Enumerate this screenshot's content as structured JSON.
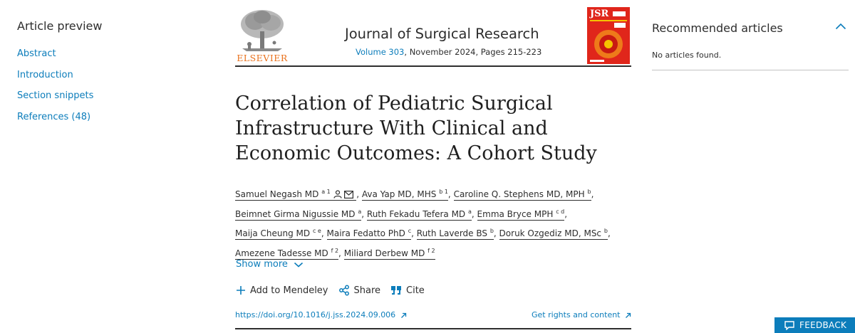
{
  "left_nav": {
    "title": "Article preview",
    "items": [
      "Abstract",
      "Introduction",
      "Section snippets",
      "References (48)"
    ]
  },
  "header": {
    "publisher": "ELSEVIER",
    "journal": "Journal of Surgical Research",
    "volume_link": "Volume 303",
    "issue_info": ", November 2024, Pages 215-223",
    "cover_label": "JSR"
  },
  "article": {
    "title": "Correlation of Pediatric Surgical Infrastructure With Clinical and Economic Outcomes: A Cohort Study",
    "authors": [
      {
        "name": "Samuel Negash MD",
        "sup": "a 1"
      },
      {
        "name": "Ava Yap MD, MHS",
        "sup": "b 1"
      },
      {
        "name": "Caroline Q. Stephens MD, MPH",
        "sup": "b"
      },
      {
        "name": "Beimnet Girma Nigussie MD",
        "sup": "a"
      },
      {
        "name": "Ruth Fekadu Tefera MD",
        "sup": "a"
      },
      {
        "name": "Emma Bryce MPH",
        "sup": "c d"
      },
      {
        "name": "Maija Cheung MD",
        "sup": "c e"
      },
      {
        "name": "Maira Fedatto PhD",
        "sup": "c"
      },
      {
        "name": "Ruth Laverde BS",
        "sup": "b"
      },
      {
        "name": "Doruk Ozgediz MD, MSc",
        "sup": "b"
      },
      {
        "name": "Amezene Tadesse MD",
        "sup": "f 2"
      },
      {
        "name": "Miliard Derbew MD",
        "sup": "f 2"
      }
    ],
    "show_more": "Show more",
    "actions": {
      "mendeley": "Add to Mendeley",
      "share": "Share",
      "cite": "Cite"
    },
    "doi": "https://doi.org/10.1016/j.jss.2024.09.006",
    "rights": "Get rights and content"
  },
  "recommended": {
    "title": "Recommended articles",
    "empty": "No articles found."
  },
  "feedback": "FEEDBACK",
  "colors": {
    "link": "#0c7dbb",
    "text": "#2e2e2e",
    "cover": "#e0261b",
    "publisher": "#e9711c"
  }
}
